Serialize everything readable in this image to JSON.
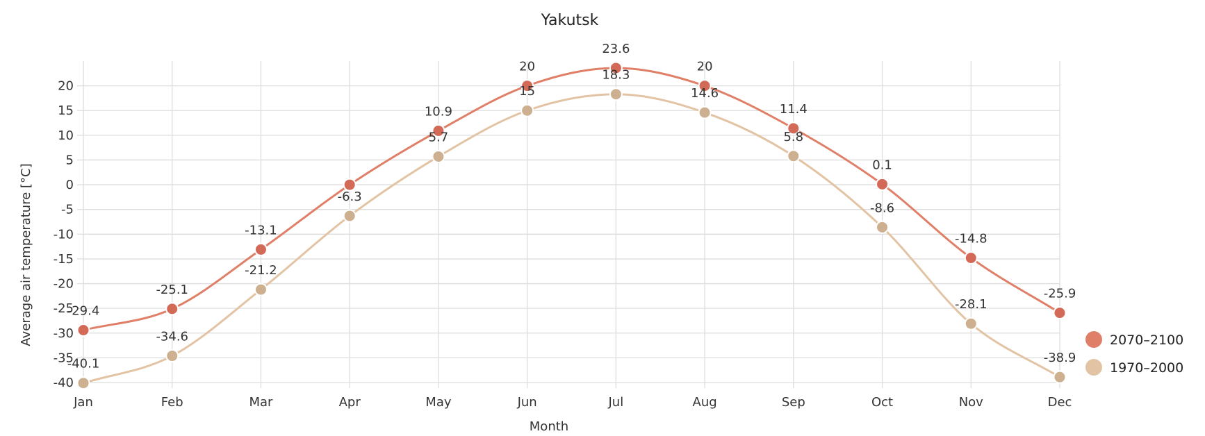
{
  "chart_data": {
    "type": "line",
    "title": "Yakutsk",
    "xlabel": "Month",
    "ylabel": "Average air temperature [°C]",
    "categories": [
      "Jan",
      "Feb",
      "Mar",
      "Apr",
      "May",
      "Jun",
      "Jul",
      "Aug",
      "Sep",
      "Oct",
      "Nov",
      "Dec"
    ],
    "yticks": [
      20,
      15,
      10,
      5,
      0,
      -5,
      -10,
      -15,
      -20,
      -25,
      -30,
      -35,
      -40
    ],
    "ylim": [
      -40,
      25
    ],
    "grid": true,
    "legend_position": "right",
    "series": [
      {
        "name": "2070–2100",
        "line_color": "#e07f68",
        "marker_color": "#d26a57",
        "values": [
          -29.4,
          -25.1,
          -13.1,
          0,
          10.9,
          20,
          23.6,
          20,
          11.4,
          0.1,
          -14.8,
          -25.9
        ],
        "labels": [
          "-29.4",
          "-25.1",
          "-13.1",
          "",
          "10.9",
          "20",
          "23.6",
          "20",
          "11.4",
          "0.1",
          "-14.8",
          "-25.9"
        ]
      },
      {
        "name": "1970–2000",
        "line_color": "#e2c4a4",
        "marker_color": "#cdb08f",
        "values": [
          -40.1,
          -34.6,
          -21.2,
          -6.3,
          5.7,
          15,
          18.3,
          14.6,
          5.8,
          -8.6,
          -28.1,
          -38.9
        ],
        "labels": [
          "-40.1",
          "-34.6",
          "-21.2",
          "-6.3",
          "5.7",
          "15",
          "18.3",
          "14.6",
          "5.8",
          "-8.6",
          "-28.1",
          "-38.9"
        ]
      }
    ]
  }
}
